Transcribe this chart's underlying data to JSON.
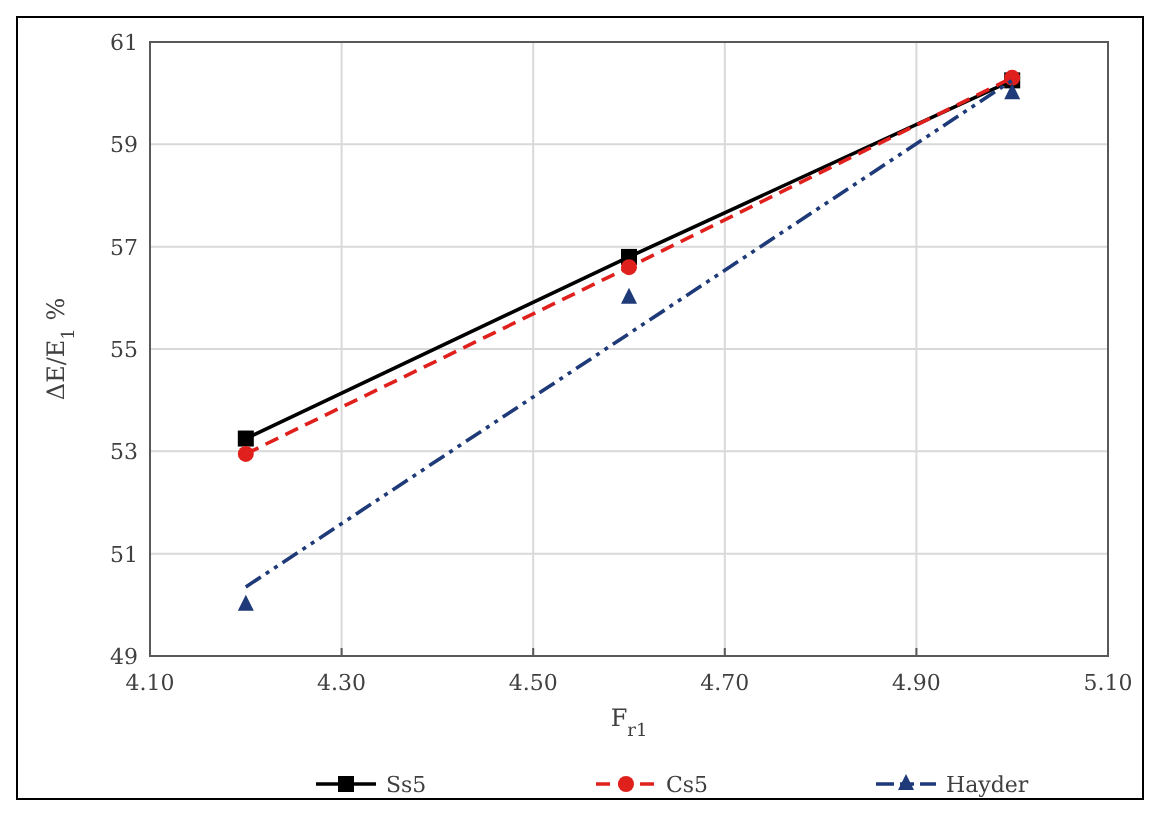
{
  "chart_data": {
    "type": "line",
    "xlabel": "F$_{r1}$",
    "ylabel": "ΔE/E$_{1}$  %",
    "xlim": [
      4.1,
      5.1
    ],
    "xticks": [
      {
        "value": 4.1,
        "label": "4.10"
      },
      {
        "value": 4.3,
        "label": "4.30"
      },
      {
        "value": 4.5,
        "label": "4.50"
      },
      {
        "value": 4.7,
        "label": "4.70"
      },
      {
        "value": 4.9,
        "label": "4.90"
      },
      {
        "value": 5.1,
        "label": "5.10"
      }
    ],
    "ylim": [
      49,
      61
    ],
    "yticks": [
      49,
      51,
      53,
      55,
      57,
      59,
      61
    ],
    "grid": true,
    "legend": "bottom",
    "x": [
      4.2,
      4.6,
      5.0
    ],
    "series": [
      {
        "name": "Ss5",
        "color": "#000000",
        "marker": "square",
        "line_style": "solid",
        "values": [
          53.25,
          56.8,
          60.25
        ]
      },
      {
        "name": "Cs5",
        "color": "#e0201c",
        "marker": "circle",
        "line_style": "dashed",
        "values": [
          52.95,
          56.6,
          60.3
        ]
      },
      {
        "name": "Hayder",
        "type": "scatter",
        "color": "#1f3a78",
        "marker": "triangle",
        "line_style": "dashdotdot",
        "values": [
          50.0,
          56.0,
          60.0
        ]
      },
      {
        "color": "#1f3a78",
        "marker": "none",
        "line_style": "dashdotdot",
        "x": [
          4.2,
          5.0
        ],
        "values": [
          50.35,
          60.25
        ]
      }
    ]
  }
}
